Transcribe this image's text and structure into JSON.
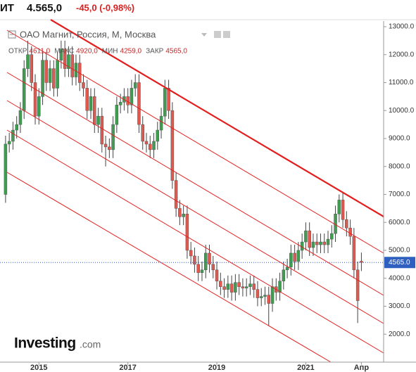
{
  "header": {
    "symbol": "ИТ",
    "price": "4.565,0",
    "change": "-45,0 (-0,98%)"
  },
  "chart_data": {
    "type": "candlestick",
    "title": "ОАО Магнит, Россия, М, Москва",
    "ohlc_legend": [
      {
        "label": "ОТКР",
        "value": "4611,0"
      },
      {
        "label": "МАКС",
        "value": "4920,0"
      },
      {
        "label": "МИН",
        "value": "4259,0"
      },
      {
        "label": "ЗАКР",
        "value": "4565,0"
      }
    ],
    "open": [
      7000,
      8800,
      8900,
      9300,
      9500,
      10000,
      11500,
      12000,
      11000,
      9800,
      10500,
      11800,
      11000,
      11500,
      10800,
      11800,
      12200,
      11500,
      12000,
      11200,
      11700,
      11000,
      10800,
      10000,
      10500,
      9500,
      9800,
      8800,
      8700,
      8600,
      9500,
      10200,
      10300,
      10500,
      10200,
      10800,
      11000,
      9500,
      8900,
      8800,
      8600,
      8900,
      9300,
      9800,
      10800,
      10000,
      7500,
      6500,
      6200,
      6300,
      5000,
      4800,
      4500,
      4200,
      4300,
      4900,
      4500,
      4300,
      3900,
      3700,
      3600,
      3800,
      3500,
      3850,
      3700,
      3650,
      3700,
      3800,
      3600,
      3300,
      3350,
      3400,
      3100,
      3700,
      3500,
      3900,
      4300,
      4400,
      4900,
      4600,
      5000,
      5300,
      5700,
      5100,
      5300,
      5200,
      5300,
      5200,
      5400,
      5600,
      6300,
      6800,
      6100,
      5800,
      5500,
      4300,
      4611
    ],
    "high": [
      9100,
      9200,
      9600,
      9800,
      10300,
      11800,
      12500,
      12300,
      11300,
      10800,
      12100,
      12100,
      11800,
      11800,
      12100,
      12500,
      12500,
      12300,
      12300,
      12000,
      12000,
      11300,
      11100,
      10800,
      10800,
      10100,
      10100,
      9100,
      9000,
      9800,
      10500,
      10600,
      10800,
      10800,
      11100,
      11300,
      11300,
      9800,
      9200,
      9100,
      9200,
      9600,
      10100,
      11100,
      11100,
      10300,
      7800,
      6800,
      6600,
      6600,
      5300,
      5100,
      4800,
      4600,
      5200,
      5200,
      4800,
      4600,
      4200,
      4000,
      4100,
      4100,
      4150,
      4150,
      4000,
      4000,
      4100,
      4100,
      3900,
      3650,
      3700,
      3700,
      4000,
      4000,
      4200,
      4600,
      4700,
      5200,
      5200,
      5300,
      5600,
      6000,
      6000,
      5600,
      5600,
      5600,
      5600,
      5700,
      5900,
      6600,
      7000,
      7100,
      6400,
      6100,
      5800,
      4600,
      4920
    ],
    "low": [
      6700,
      8500,
      8600,
      9000,
      9200,
      9700,
      11200,
      10700,
      9500,
      9500,
      10200,
      10700,
      10700,
      10500,
      10500,
      11500,
      11200,
      11200,
      10900,
      10900,
      10700,
      10500,
      9700,
      9700,
      9200,
      9200,
      8500,
      8000,
      8300,
      8300,
      9200,
      9900,
      10000,
      9900,
      9900,
      10500,
      9200,
      8600,
      8500,
      8300,
      8300,
      8600,
      9000,
      9500,
      9700,
      7200,
      6200,
      5900,
      5900,
      4700,
      4500,
      4200,
      3900,
      3900,
      4000,
      4200,
      4000,
      3600,
      3400,
      3300,
      3300,
      3200,
      3200,
      3400,
      3350,
      3350,
      3400,
      3300,
      3000,
      3000,
      3050,
      2300,
      2800,
      3200,
      3200,
      3600,
      4000,
      4100,
      4300,
      4300,
      4700,
      5000,
      4800,
      4800,
      4900,
      4900,
      4900,
      4900,
      5100,
      5300,
      6000,
      5800,
      5500,
      5200,
      4000,
      2400,
      4259
    ],
    "close": [
      8800,
      8900,
      9300,
      9500,
      10000,
      11500,
      12000,
      11000,
      9800,
      10500,
      11800,
      11000,
      11500,
      10800,
      11800,
      12200,
      11500,
      12000,
      11200,
      11700,
      11000,
      10800,
      10000,
      10500,
      9500,
      9800,
      8800,
      8700,
      8600,
      9500,
      10200,
      10300,
      10500,
      10200,
      10800,
      11000,
      9500,
      8900,
      8800,
      8600,
      8900,
      9300,
      9800,
      10800,
      10000,
      7500,
      6500,
      6200,
      6300,
      5000,
      4800,
      4500,
      4200,
      4300,
      4900,
      4500,
      4300,
      3900,
      3700,
      3600,
      3800,
      3500,
      3850,
      3700,
      3650,
      3700,
      3800,
      3600,
      3300,
      3350,
      3400,
      3100,
      3700,
      3500,
      3900,
      4300,
      4400,
      4900,
      4600,
      5000,
      5300,
      5700,
      5100,
      5300,
      5200,
      5300,
      5200,
      5400,
      5600,
      6300,
      6800,
      6100,
      5800,
      5500,
      4300,
      3200,
      4565
    ],
    "up_color": "#3d9e4f",
    "down_color": "#e0584e",
    "ylim": [
      1000,
      13200
    ],
    "yticks": [
      {
        "value": 2000,
        "label": "2000.0"
      },
      {
        "value": 3000,
        "label": "3000.0"
      },
      {
        "value": 4000,
        "label": "4000.0"
      },
      {
        "value": 5000,
        "label": "5000.0"
      },
      {
        "value": 6000,
        "label": "6000.0"
      },
      {
        "value": 7000,
        "label": "7000.0"
      },
      {
        "value": 8000,
        "label": "8000.0"
      },
      {
        "value": 9000,
        "label": "9000.0"
      },
      {
        "value": 10000,
        "label": "10000.0"
      },
      {
        "value": 11000,
        "label": "11000.0"
      },
      {
        "value": 12000,
        "label": "12000.0"
      },
      {
        "value": 13000,
        "label": "13000.0"
      }
    ],
    "xlim": [
      -1.5,
      102
    ],
    "xticks": [
      {
        "value": 9,
        "label": "2015"
      },
      {
        "value": 33,
        "label": "2017"
      },
      {
        "value": 57,
        "label": "2019"
      },
      {
        "value": 81,
        "label": "2021"
      },
      {
        "value": 96,
        "label": "Апр"
      }
    ],
    "last_price": {
      "value": 4565,
      "label": "4565.0"
    },
    "watermark": "Investing",
    "watermark_suffix": ".com"
  }
}
